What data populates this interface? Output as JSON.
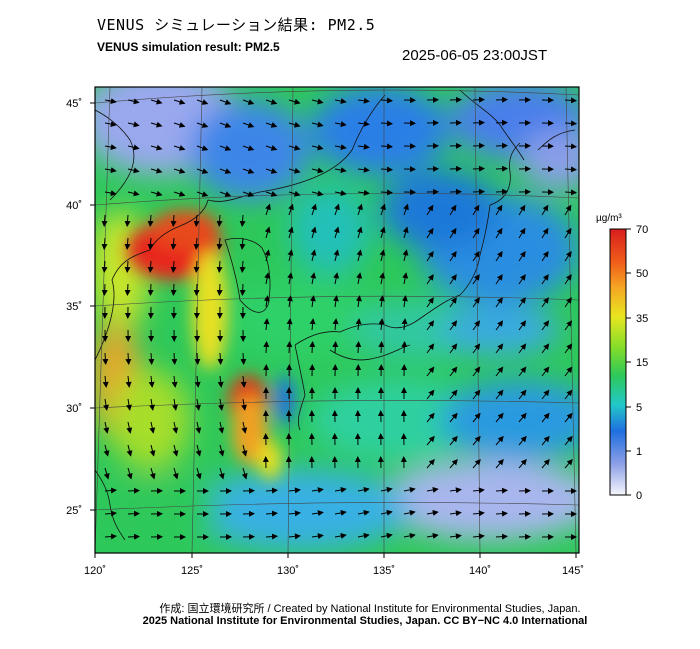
{
  "header": {
    "title_jp": "VENUS シミュレーション結果: PM2.5",
    "title_en": "VENUS simulation result: PM2.5",
    "timestamp": "2025-06-05 23:00JST"
  },
  "map": {
    "lon_ticks": [
      "120˚",
      "125˚",
      "130˚",
      "135˚",
      "140˚",
      "145˚"
    ],
    "lat_ticks": [
      "25˚",
      "30˚",
      "35˚",
      "40˚",
      "45˚"
    ],
    "lon_range": [
      120,
      145
    ],
    "lat_range": [
      23,
      46
    ]
  },
  "colorbar": {
    "unit": "µg/m³",
    "labels": [
      "70",
      "50",
      "35",
      "15",
      "5",
      "1",
      "0"
    ],
    "colors": [
      "#d41f1f",
      "#f0a020",
      "#e8e820",
      "#2ec82e",
      "#26d0c0",
      "#2070e0",
      "#f4f4fc"
    ]
  },
  "footer": {
    "credit": "作成: 国立環境研究所 / Created by National Institute for Environmental Studies, Japan.",
    "license": "2025 National Institute for Environmental Studies, Japan. CC BY−NC 4.0 International"
  }
}
